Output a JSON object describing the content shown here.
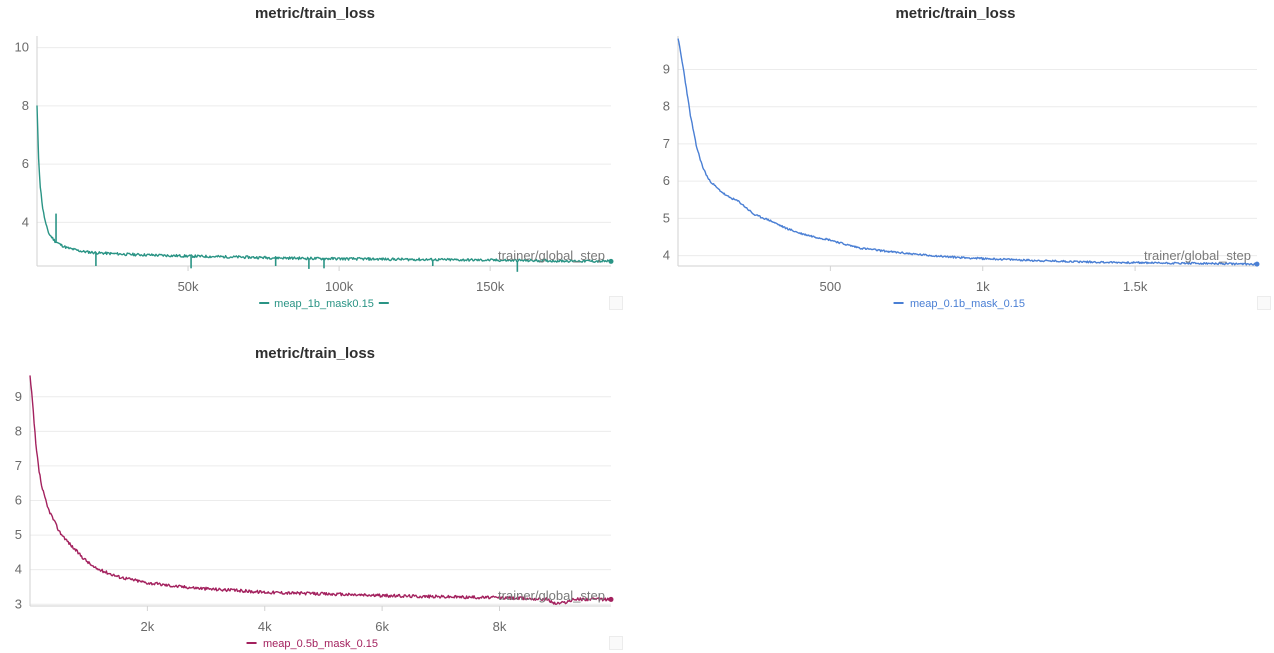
{
  "chart_data": [
    {
      "type": "line",
      "title": "metric/train_loss",
      "xlabel": "trainer/global_step",
      "ylabel": "",
      "xlim": [
        0,
        190000
      ],
      "ylim": [
        2.5,
        10.4
      ],
      "xticks": [
        50000,
        100000,
        150000
      ],
      "xtick_labels": [
        "50k",
        "100k",
        "150k"
      ],
      "yticks": [
        4,
        6,
        8,
        10
      ],
      "ytick_labels": [
        "4",
        "6",
        "8",
        "10"
      ],
      "grid": true,
      "legend_position": "bottom",
      "legend_marker": "dash",
      "series": [
        {
          "name": "meap_1b_mask0.15",
          "color": "#2a9485",
          "x": [
            0,
            500,
            1000,
            2000,
            3000,
            4000,
            6000,
            8000,
            10000,
            15000,
            20000,
            30000,
            40000,
            50000,
            70000,
            90000,
            110000,
            130000,
            150000,
            170000,
            190000
          ],
          "y": [
            8.0,
            6.3,
            5.3,
            4.4,
            3.9,
            3.6,
            3.35,
            3.22,
            3.12,
            3.0,
            2.95,
            2.9,
            2.87,
            2.84,
            2.8,
            2.76,
            2.74,
            2.72,
            2.7,
            2.68,
            2.66
          ],
          "spikes": [
            {
              "x": 6300,
              "y": 4.3
            },
            {
              "x": 19500,
              "y": 2.5
            },
            {
              "x": 51000,
              "y": 2.42
            },
            {
              "x": 79000,
              "y": 2.5
            },
            {
              "x": 90000,
              "y": 2.4
            },
            {
              "x": 95000,
              "y": 2.42
            },
            {
              "x": 131000,
              "y": 2.5
            },
            {
              "x": 159000,
              "y": 2.3
            }
          ]
        }
      ]
    },
    {
      "type": "line",
      "title": "metric/train_loss",
      "xlabel": "trainer/global_step",
      "ylabel": "",
      "xlim": [
        0,
        1900
      ],
      "ylim": [
        3.72,
        9.9
      ],
      "xticks": [
        500,
        1000,
        1500
      ],
      "xtick_labels": [
        "500",
        "1k",
        "1.5k"
      ],
      "yticks": [
        4,
        5,
        6,
        7,
        8,
        9
      ],
      "ytick_labels": [
        "4",
        "5",
        "6",
        "7",
        "8",
        "9"
      ],
      "grid": true,
      "legend_position": "bottom",
      "legend_marker": "dash",
      "series": [
        {
          "name": "meap_0.1b_mask_0.15",
          "color": "#4a7fd4",
          "x": [
            0,
            20,
            40,
            60,
            80,
            100,
            130,
            160,
            200,
            250,
            300,
            350,
            400,
            450,
            500,
            550,
            600,
            700,
            800,
            900,
            1000,
            1200,
            1400,
            1600,
            1800,
            1900
          ],
          "y": [
            9.85,
            8.9,
            7.8,
            6.95,
            6.4,
            6.05,
            5.8,
            5.6,
            5.45,
            5.1,
            4.95,
            4.75,
            4.6,
            4.5,
            4.42,
            4.3,
            4.2,
            4.1,
            4.02,
            3.96,
            3.92,
            3.86,
            3.82,
            3.8,
            3.78,
            3.77
          ]
        }
      ]
    },
    {
      "type": "line",
      "title": "metric/train_loss",
      "xlabel": "trainer/global_step",
      "ylabel": "",
      "xlim": [
        0,
        9900
      ],
      "ylim": [
        2.95,
        9.6
      ],
      "xticks": [
        2000,
        4000,
        6000,
        8000
      ],
      "xtick_labels": [
        "2k",
        "4k",
        "6k",
        "8k"
      ],
      "yticks": [
        3,
        4,
        5,
        6,
        7,
        8,
        9
      ],
      "ytick_labels": [
        "3",
        "4",
        "5",
        "6",
        "7",
        "8",
        "9"
      ],
      "grid": true,
      "legend_position": "bottom",
      "legend_marker": "dash",
      "series": [
        {
          "name": "meap_0.5b_mask_0.15",
          "color": "#a3215e",
          "x": [
            0,
            50,
            100,
            150,
            200,
            300,
            400,
            500,
            700,
            900,
            1100,
            1500,
            2000,
            2500,
            3000,
            4000,
            5000,
            6000,
            7000,
            8000,
            8800,
            8950,
            9100,
            9300,
            9900
          ],
          "y": [
            9.6,
            8.7,
            7.6,
            6.9,
            6.4,
            5.8,
            5.45,
            5.1,
            4.7,
            4.35,
            4.05,
            3.8,
            3.62,
            3.52,
            3.45,
            3.35,
            3.3,
            3.25,
            3.22,
            3.19,
            3.15,
            3.02,
            3.05,
            3.15,
            3.14
          ]
        }
      ]
    }
  ]
}
